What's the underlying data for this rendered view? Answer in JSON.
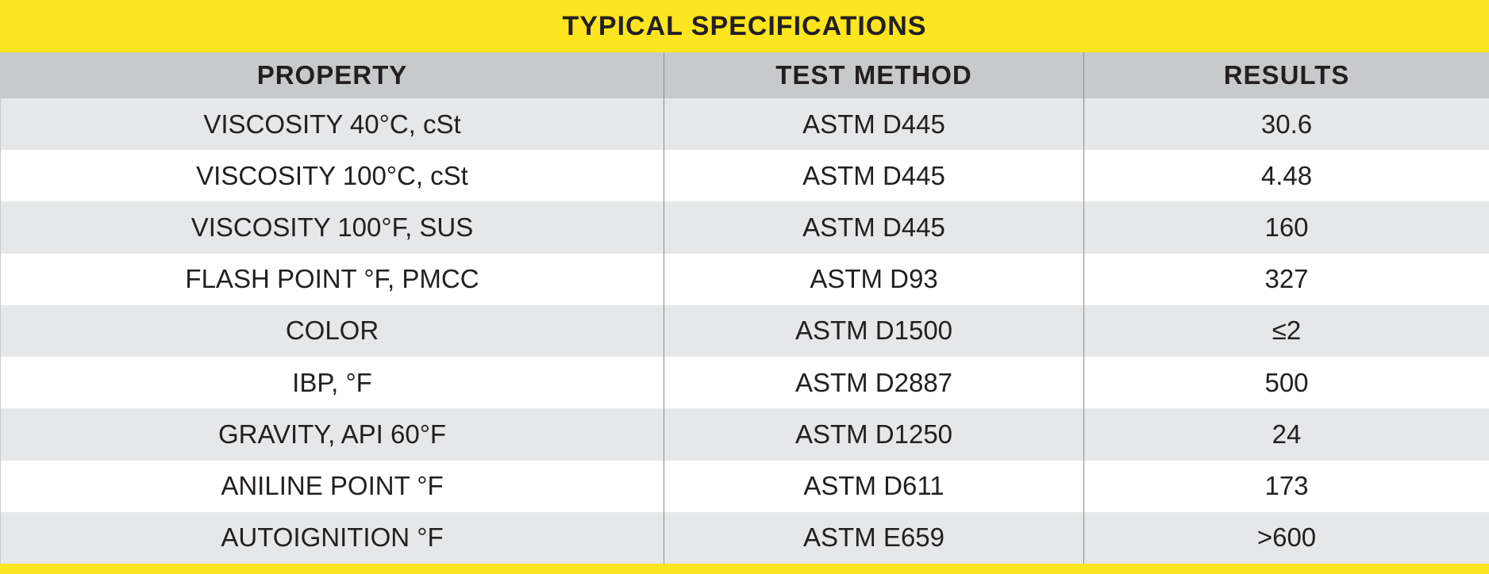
{
  "header": {
    "title": "TYPICAL SPECIFICATIONS"
  },
  "table": {
    "columns": [
      "PROPERTY",
      "TEST METHOD",
      "RESULTS"
    ],
    "rows": [
      [
        "VISCOSITY 40°C, cSt",
        "ASTM D445",
        "30.6"
      ],
      [
        "VISCOSITY 100°C, cSt",
        "ASTM D445",
        "4.48"
      ],
      [
        "VISCOSITY 100°F, SUS",
        "ASTM D445",
        "160"
      ],
      [
        "FLASH POINT °F, PMCC",
        "ASTM D93",
        "327"
      ],
      [
        "COLOR",
        "ASTM D1500",
        "≤2"
      ],
      [
        "IBP, °F",
        "ASTM D2887",
        "500"
      ],
      [
        "GRAVITY, API 60°F",
        "ASTM D1250",
        "24"
      ],
      [
        "ANILINE POINT °F",
        "ASTM D611",
        "173"
      ],
      [
        "AUTOIGNITION °F",
        "ASTM E659",
        ">600"
      ]
    ]
  }
}
